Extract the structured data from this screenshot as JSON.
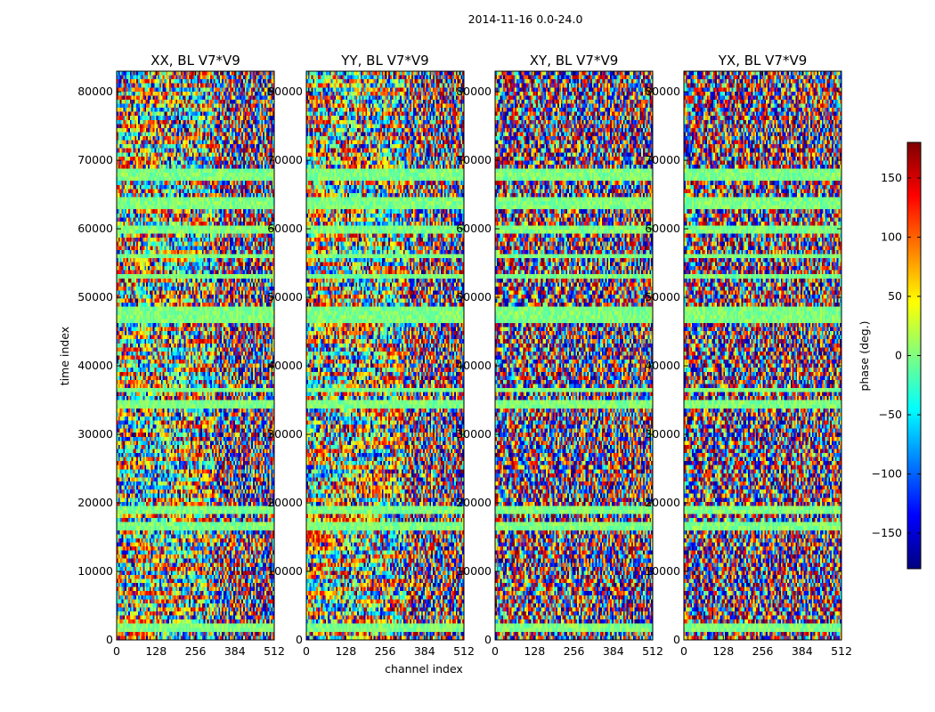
{
  "chart_data": {
    "type": "heatmap",
    "suptitle": "2014-11-16 0.0-24.0",
    "xlabel": "channel index",
    "ylabel": "time index",
    "x_range": [
      0,
      512
    ],
    "y_range": [
      0,
      83000
    ],
    "x_ticks": [
      0,
      128,
      256,
      384,
      512
    ],
    "y_ticks": [
      0,
      10000,
      20000,
      30000,
      40000,
      50000,
      60000,
      70000,
      80000
    ],
    "panels": [
      {
        "title": "XX, BL V7*V9",
        "coherent_channel_limit": 320
      },
      {
        "title": "YY, BL V7*V9",
        "coherent_channel_limit": 320
      },
      {
        "title": "XY, BL V7*V9",
        "coherent_channel_limit": 0
      },
      {
        "title": "YX, BL V7*V9",
        "coherent_channel_limit": 0
      }
    ],
    "flagged_time_bands": [
      [
        1000,
        2500
      ],
      [
        16000,
        17000
      ],
      [
        18500,
        19500
      ],
      [
        34000,
        35200
      ],
      [
        36000,
        36800
      ],
      [
        46500,
        48500
      ],
      [
        52500,
        53200
      ],
      [
        55500,
        56500
      ],
      [
        59500,
        60500
      ],
      [
        63000,
        64500
      ],
      [
        67000,
        68500
      ]
    ],
    "colorbar": {
      "label": "phase (deg.)",
      "range": [
        -180,
        180
      ],
      "ticks": [
        -150,
        -100,
        -50,
        0,
        50,
        100,
        150
      ],
      "colormap": "jet",
      "colors": [
        "#00007f",
        "#0000ff",
        "#007fff",
        "#00ffff",
        "#7fff7f",
        "#ffff00",
        "#ff7f00",
        "#ff0000",
        "#7f0000"
      ]
    }
  }
}
